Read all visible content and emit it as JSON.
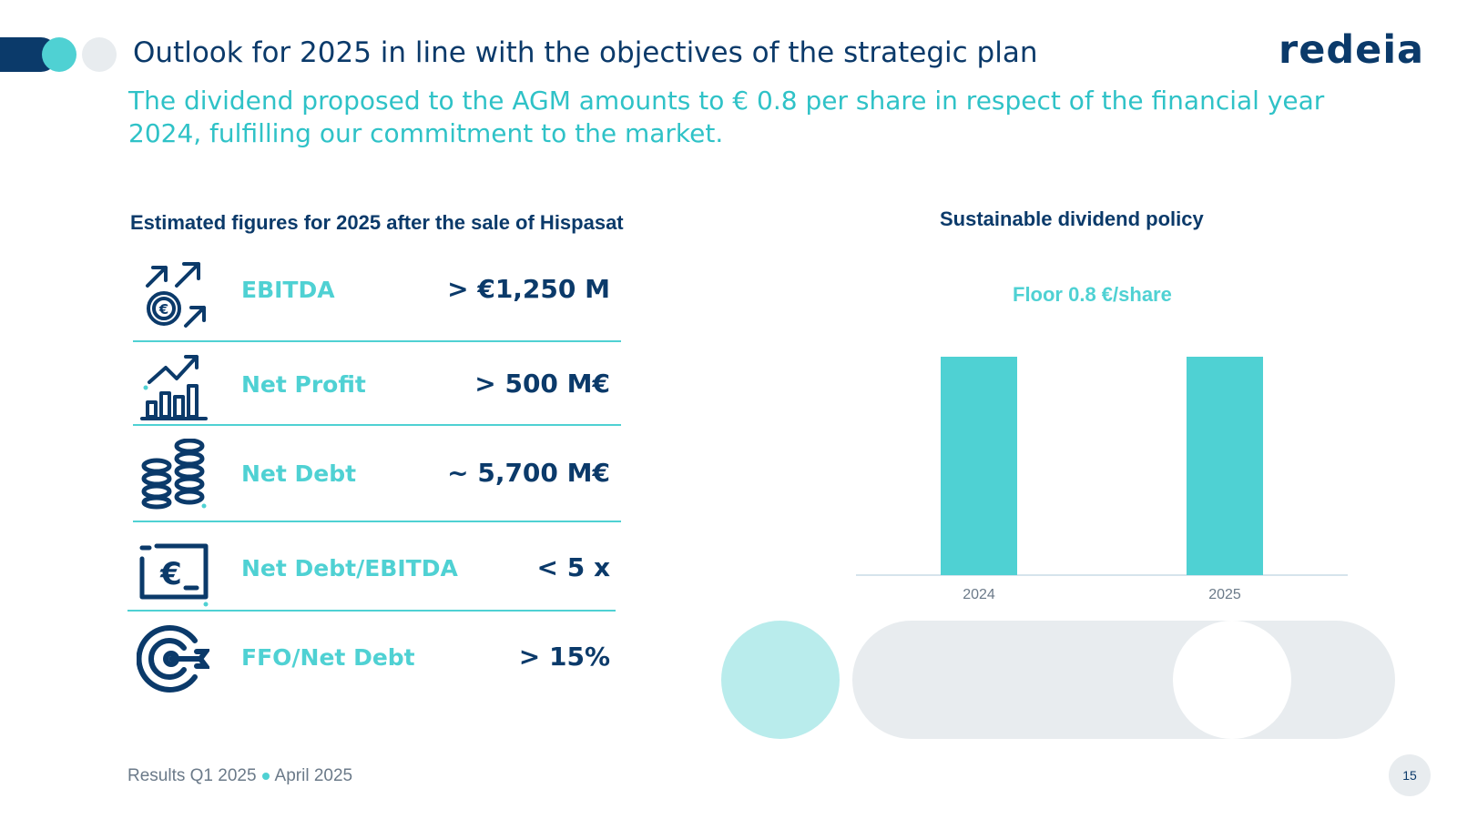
{
  "header": {
    "title": "Outlook for 2025 in line with the objectives of the strategic plan",
    "logo_text": "redeia",
    "subtitle": "The dividend proposed to the AGM amounts to € 0.8 per share in respect of the financial year 2024, fulfilling our commitment to the market."
  },
  "left_section": {
    "heading": "Estimated figures for 2025 after the sale of Hispasat",
    "metrics": [
      {
        "label": "EBITDA",
        "value": "> €1,250 M",
        "icon": "growth-arrows-euro-icon"
      },
      {
        "label": "Net Profit",
        "value": "> 500 M€",
        "icon": "bar-chart-trend-icon"
      },
      {
        "label": "Net Debt",
        "value": "~ 5,700 M€",
        "icon": "coin-stacks-icon"
      },
      {
        "label": "Net Debt/EBITDA",
        "value": "< 5 x",
        "icon": "euro-card-icon"
      },
      {
        "label": "FFO/Net Debt",
        "value": "> 15%",
        "icon": "target-icon"
      }
    ]
  },
  "right_section": {
    "heading": "Sustainable dividend policy",
    "chart_title": "Floor 0.8 €/share"
  },
  "chart_data": {
    "type": "bar",
    "title": "Floor 0.8 €/share",
    "categories": [
      "2024",
      "2025"
    ],
    "values": [
      0.8,
      0.8
    ],
    "xlabel": "",
    "ylabel": "",
    "ylim": [
      0,
      0.8
    ],
    "grid": false,
    "color": "#4fd1d3"
  },
  "footer": {
    "left": "Results Q1 2025",
    "right": "April 2025",
    "page_number": "15"
  },
  "colors": {
    "navy": "#0b3a6a",
    "teal": "#4fd1d3",
    "light_grey": "#e8ecef"
  }
}
